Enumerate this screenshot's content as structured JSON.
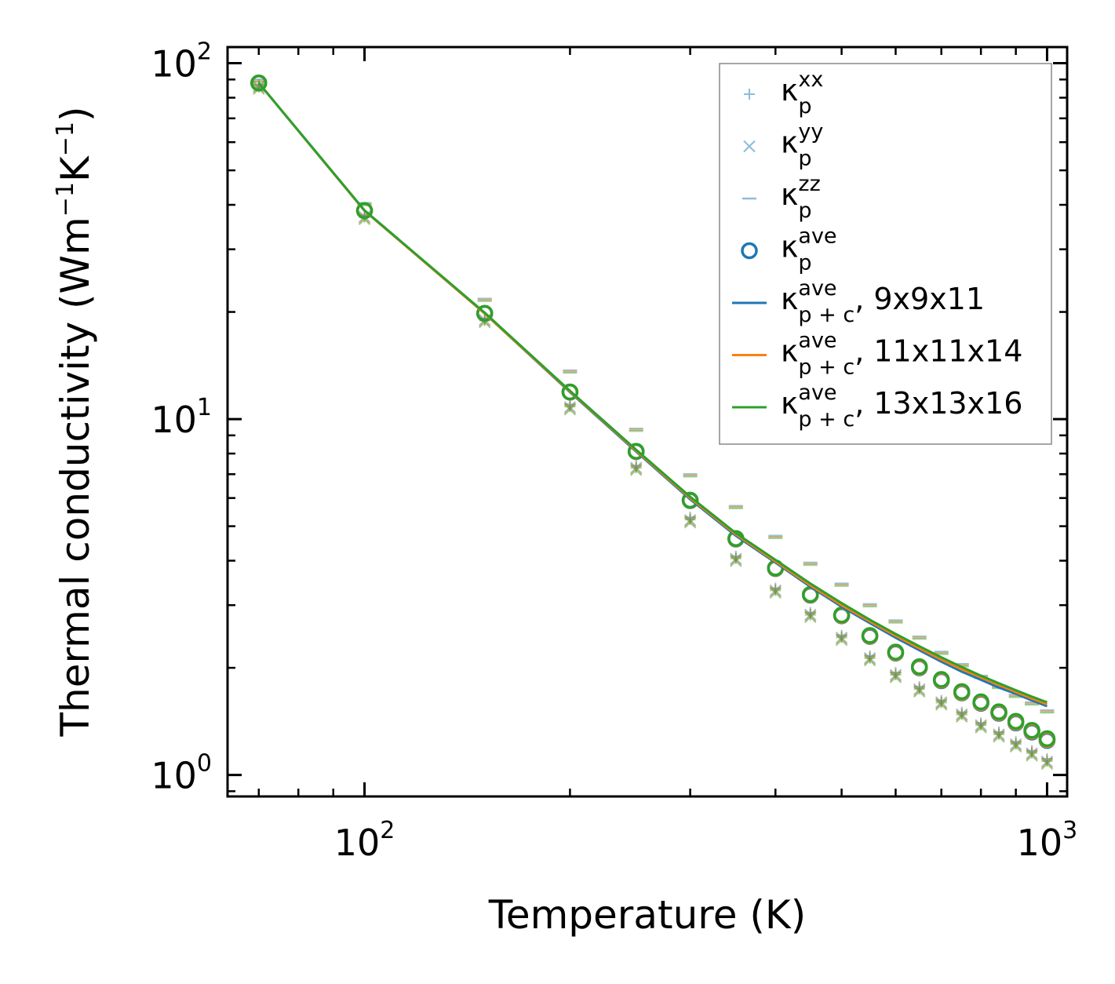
{
  "chart_data": {
    "type": "scatter",
    "title": "",
    "xlabel": "Temperature (K)",
    "ylabel_parts": {
      "pre": "Thermal conductivity (Wm",
      "exp1": "−1",
      "mid": "K",
      "exp2": "−1",
      "post": ")"
    },
    "xscale": "log",
    "yscale": "log",
    "xlim": [
      63,
      1070
    ],
    "ylim": [
      0.87,
      111
    ],
    "grid": false,
    "legend_position": "top-right",
    "x_ticks": [
      {
        "value": 100,
        "base": "10",
        "exp": "2"
      },
      {
        "value": 1000,
        "base": "10",
        "exp": "3"
      }
    ],
    "y_ticks": [
      {
        "value": 1,
        "base": "10",
        "exp": "0"
      },
      {
        "value": 10,
        "base": "10",
        "exp": "1"
      },
      {
        "value": 100,
        "base": "10",
        "exp": "2"
      }
    ],
    "x": [
      70,
      100,
      150,
      200,
      250,
      300,
      350,
      400,
      450,
      500,
      550,
      600,
      650,
      700,
      750,
      800,
      850,
      900,
      950,
      1000
    ],
    "series": [
      {
        "name": "κ_p^xx",
        "label_base": "κ",
        "label_sub": "p",
        "label_sup": "xx",
        "label_extra": "",
        "kind": "plus",
        "color": "#1f77b4",
        "values": [
          87,
          37.5,
          19.2,
          11.0,
          7.4,
          5.3,
          4.12,
          3.35,
          2.86,
          2.47,
          2.16,
          1.94,
          1.77,
          1.62,
          1.5,
          1.4,
          1.32,
          1.24,
          1.17,
          1.11
        ]
      },
      {
        "name": "κ_p^yy",
        "label_base": "κ",
        "label_sub": "p",
        "label_sup": "yy",
        "label_extra": "",
        "kind": "cross",
        "color": "#1f77b4",
        "values": [
          86,
          37.0,
          19.0,
          10.8,
          7.3,
          5.2,
          4.05,
          3.3,
          2.82,
          2.43,
          2.13,
          1.91,
          1.74,
          1.6,
          1.48,
          1.38,
          1.3,
          1.22,
          1.15,
          1.09
        ]
      },
      {
        "name": "κ_p^zz",
        "label_base": "κ",
        "label_sub": "p",
        "label_sup": "zz",
        "label_extra": "",
        "kind": "dash",
        "color": "#1f77b4",
        "values": [
          90,
          40.5,
          21.8,
          13.7,
          9.4,
          7.0,
          5.7,
          4.7,
          3.95,
          3.45,
          3.02,
          2.72,
          2.45,
          2.22,
          2.05,
          1.9,
          1.78,
          1.68,
          1.6,
          1.52
        ]
      },
      {
        "name": "κ_p^ave",
        "label_base": "κ",
        "label_sub": "p",
        "label_sup": "ave",
        "label_extra": "",
        "kind": "circle",
        "color": "#1f77b4",
        "values": [
          88,
          38.5,
          19.8,
          11.9,
          8.1,
          5.9,
          4.6,
          3.8,
          3.2,
          2.8,
          2.45,
          2.2,
          2.0,
          1.84,
          1.7,
          1.59,
          1.49,
          1.4,
          1.32,
          1.25
        ]
      },
      {
        "name": "κ_p+c^ave, 9x9x11",
        "label_base": "κ",
        "label_sub": "p + c",
        "label_sup": "ave",
        "label_extra": ", 9x9x11",
        "kind": "line",
        "color": "#1f77b4",
        "values": [
          88,
          38.5,
          19.8,
          11.9,
          8.1,
          5.95,
          4.7,
          3.95,
          3.38,
          2.97,
          2.67,
          2.43,
          2.24,
          2.08,
          1.95,
          1.85,
          1.76,
          1.69,
          1.62,
          1.56
        ]
      },
      {
        "name": "κ_p+c^ave, 11x11x14",
        "label_base": "κ",
        "label_sub": "p + c",
        "label_sup": "ave",
        "label_extra": ", 11x11x14",
        "kind": "line",
        "color": "#ff7f0e",
        "values": [
          88,
          38.5,
          19.8,
          11.95,
          8.15,
          6.0,
          4.74,
          3.98,
          3.41,
          3.0,
          2.7,
          2.46,
          2.27,
          2.11,
          1.98,
          1.88,
          1.79,
          1.71,
          1.64,
          1.58
        ]
      },
      {
        "name": "κ_p+c^ave, 13x13x16",
        "label_base": "κ",
        "label_sub": "p + c",
        "label_sup": "ave",
        "label_extra": ", 13x13x16",
        "kind": "line",
        "color": "#2ca02c",
        "values": [
          88,
          38.6,
          19.9,
          12.0,
          8.2,
          6.05,
          4.78,
          4.02,
          3.45,
          3.04,
          2.73,
          2.49,
          2.3,
          2.14,
          2.01,
          1.9,
          1.81,
          1.73,
          1.66,
          1.6
        ]
      }
    ],
    "marker_overlays": {
      "description_colors": [
        "#1f77b4",
        "#ff7f0e",
        "#2ca02c"
      ]
    }
  }
}
